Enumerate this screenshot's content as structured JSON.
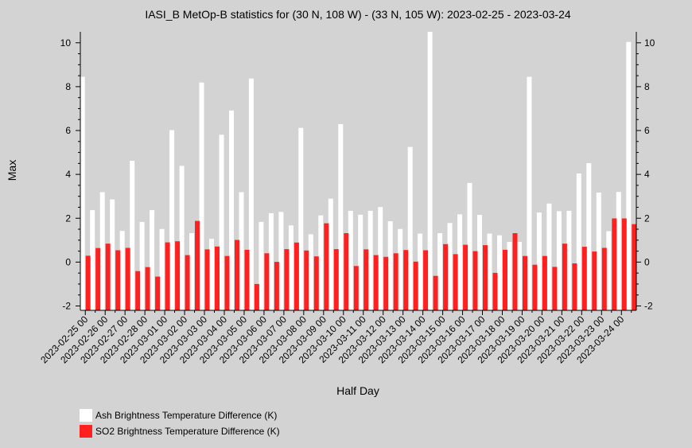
{
  "chart_data": {
    "type": "bar",
    "title": "IASI_B MetOp-B statistics for (30 N, 108 W) - (33 N, 105 W): 2023-02-25 - 2023-03-24",
    "xlabel": "Half Day",
    "ylabel": "Max",
    "ylim": [
      -2.2,
      10.5
    ],
    "yticks": [
      -2,
      0,
      2,
      4,
      6,
      8,
      10
    ],
    "grid": false,
    "legend_position": "bottom-left",
    "background_color": "#d3d3d3",
    "categories": [
      "2023-02-25 00",
      "2023-02-25 12",
      "2023-02-26 00",
      "2023-02-26 12",
      "2023-02-27 00",
      "2023-02-27 12",
      "2023-02-28 00",
      "2023-02-28 12",
      "2023-03-01 00",
      "2023-03-01 12",
      "2023-03-02 00",
      "2023-03-02 12",
      "2023-03-03 00",
      "2023-03-03 12",
      "2023-03-04 00",
      "2023-03-04 12",
      "2023-03-05 00",
      "2023-03-05 12",
      "2023-03-06 00",
      "2023-03-06 12",
      "2023-03-07 00",
      "2023-03-07 12",
      "2023-03-08 00",
      "2023-03-08 12",
      "2023-03-09 00",
      "2023-03-09 12",
      "2023-03-10 00",
      "2023-03-10 12",
      "2023-03-11 00",
      "2023-03-11 12",
      "2023-03-12 00",
      "2023-03-12 12",
      "2023-03-13 00",
      "2023-03-13 12",
      "2023-03-14 00",
      "2023-03-14 12",
      "2023-03-15 00",
      "2023-03-15 12",
      "2023-03-16 00",
      "2023-03-16 12",
      "2023-03-17 00",
      "2023-03-17 12",
      "2023-03-18 00",
      "2023-03-18 12",
      "2023-03-19 00",
      "2023-03-19 12",
      "2023-03-20 00",
      "2023-03-20 12",
      "2023-03-21 00",
      "2023-03-21 12",
      "2023-03-22 00",
      "2023-03-22 12",
      "2023-03-23 00",
      "2023-03-23 12",
      "2023-03-24 00",
      "2023-03-24 12"
    ],
    "tick_labels": [
      "2023-02-25 00",
      "2023-02-26 00",
      "2023-02-27 00",
      "2023-02-28 00",
      "2023-03-01 00",
      "2023-03-02 00",
      "2023-03-03 00",
      "2023-03-04 00",
      "2023-03-05 00",
      "2023-03-06 00",
      "2023-03-07 00",
      "2023-03-08 00",
      "2023-03-09 00",
      "2023-03-10 00",
      "2023-03-11 00",
      "2023-03-12 00",
      "2023-03-13 00",
      "2023-03-14 00",
      "2023-03-15 00",
      "2023-03-16 00",
      "2023-03-17 00",
      "2023-03-18 00",
      "2023-03-19 00",
      "2023-03-20 00",
      "2023-03-21 00",
      "2023-03-22 00",
      "2023-03-23 00",
      "2023-03-24 00"
    ],
    "series": [
      {
        "name": "Ash Brightness Temperature Difference (K)",
        "color": "#ffffff",
        "values": [
          8.45,
          2.37,
          3.19,
          2.86,
          1.42,
          4.62,
          1.83,
          2.37,
          1.51,
          6.02,
          4.39,
          1.32,
          8.19,
          1.06,
          5.81,
          6.91,
          3.19,
          8.37,
          1.83,
          2.23,
          2.29,
          1.67,
          6.12,
          1.27,
          2.13,
          2.89,
          6.29,
          2.34,
          2.16,
          2.34,
          2.51,
          1.86,
          1.51,
          5.25,
          1.3,
          10.5,
          1.32,
          1.78,
          2.18,
          3.61,
          2.15,
          1.3,
          1.22,
          0.92,
          0.92,
          8.45,
          2.26,
          2.67,
          2.32,
          2.34,
          4.04,
          4.51,
          3.17,
          1.41,
          3.2,
          10.04
        ]
      },
      {
        "name": "SO2 Brightness Temperature Difference (K)",
        "color": "#ff2020",
        "values": [
          0.29,
          0.64,
          0.84,
          0.54,
          0.65,
          -0.41,
          -0.23,
          -0.66,
          0.9,
          0.95,
          0.32,
          1.88,
          0.58,
          0.71,
          0.28,
          1.01,
          0.56,
          -1.0,
          0.4,
          0.01,
          0.59,
          0.89,
          0.53,
          0.26,
          1.77,
          0.59,
          1.32,
          -0.18,
          0.58,
          0.32,
          0.24,
          0.4,
          0.55,
          0.02,
          0.54,
          -0.63,
          0.82,
          0.36,
          0.79,
          0.5,
          0.77,
          -0.49,
          0.56,
          1.32,
          0.28,
          -0.12,
          0.28,
          -0.22,
          0.84,
          -0.06,
          0.7,
          0.48,
          0.65,
          1.99,
          1.99,
          1.73
        ]
      }
    ]
  }
}
